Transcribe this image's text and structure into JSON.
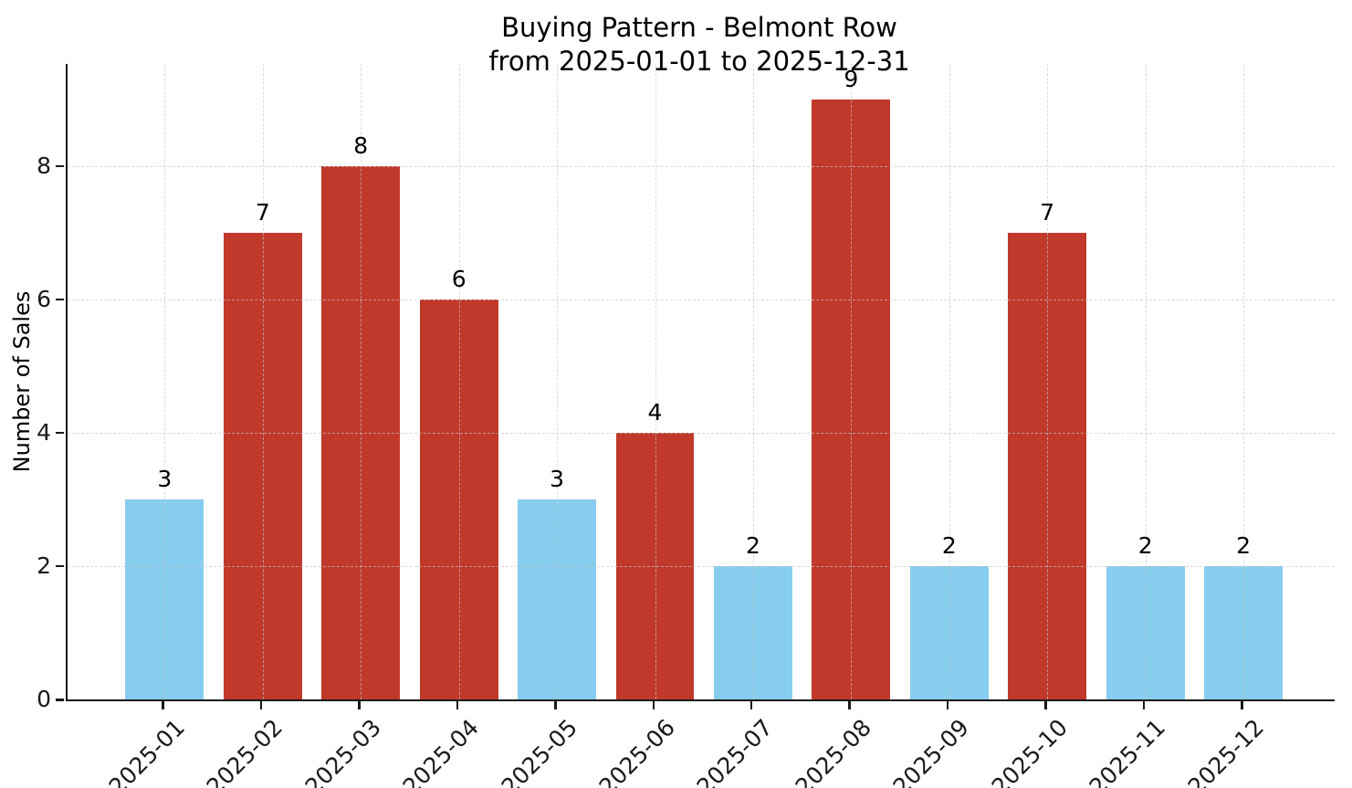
{
  "title": {
    "line1": "Buying Pattern - Belmont Row",
    "line2": "from 2025-01-01 to 2025-12-31"
  },
  "chart_data": {
    "type": "bar",
    "title": "Buying Pattern - Belmont Row\nfrom 2025-01-01 to 2025-12-31",
    "categories": [
      "2025-01",
      "2025-02",
      "2025-03",
      "2025-04",
      "2025-05",
      "2025-06",
      "2025-07",
      "2025-08",
      "2025-09",
      "2025-10",
      "2025-11",
      "2025-12"
    ],
    "values": [
      3,
      7,
      8,
      6,
      3,
      4,
      2,
      9,
      2,
      7,
      2,
      2
    ],
    "bar_colors": [
      "#87CDEF",
      "#C0392B",
      "#C0392B",
      "#C0392B",
      "#87CDEF",
      "#C0392B",
      "#87CDEF",
      "#C0392B",
      "#87CDEF",
      "#C0392B",
      "#87CDEF",
      "#87CDEF"
    ],
    "value_labels": [
      3,
      7,
      8,
      6,
      3,
      4,
      2,
      9,
      2,
      7,
      2,
      2
    ],
    "xlabel": "",
    "ylabel": "Number of Sales",
    "yticks": [
      0,
      2,
      4,
      6,
      8
    ],
    "ylim": [
      0,
      9.53
    ],
    "grid": true,
    "grid_style": "dashed",
    "legend": "none",
    "colors": {
      "bar_low": "#87CDEF",
      "bar_high": "#C0392B",
      "axis": "#1a1a1a",
      "grid": "#d9d9d9",
      "background": "#ffffff"
    }
  }
}
